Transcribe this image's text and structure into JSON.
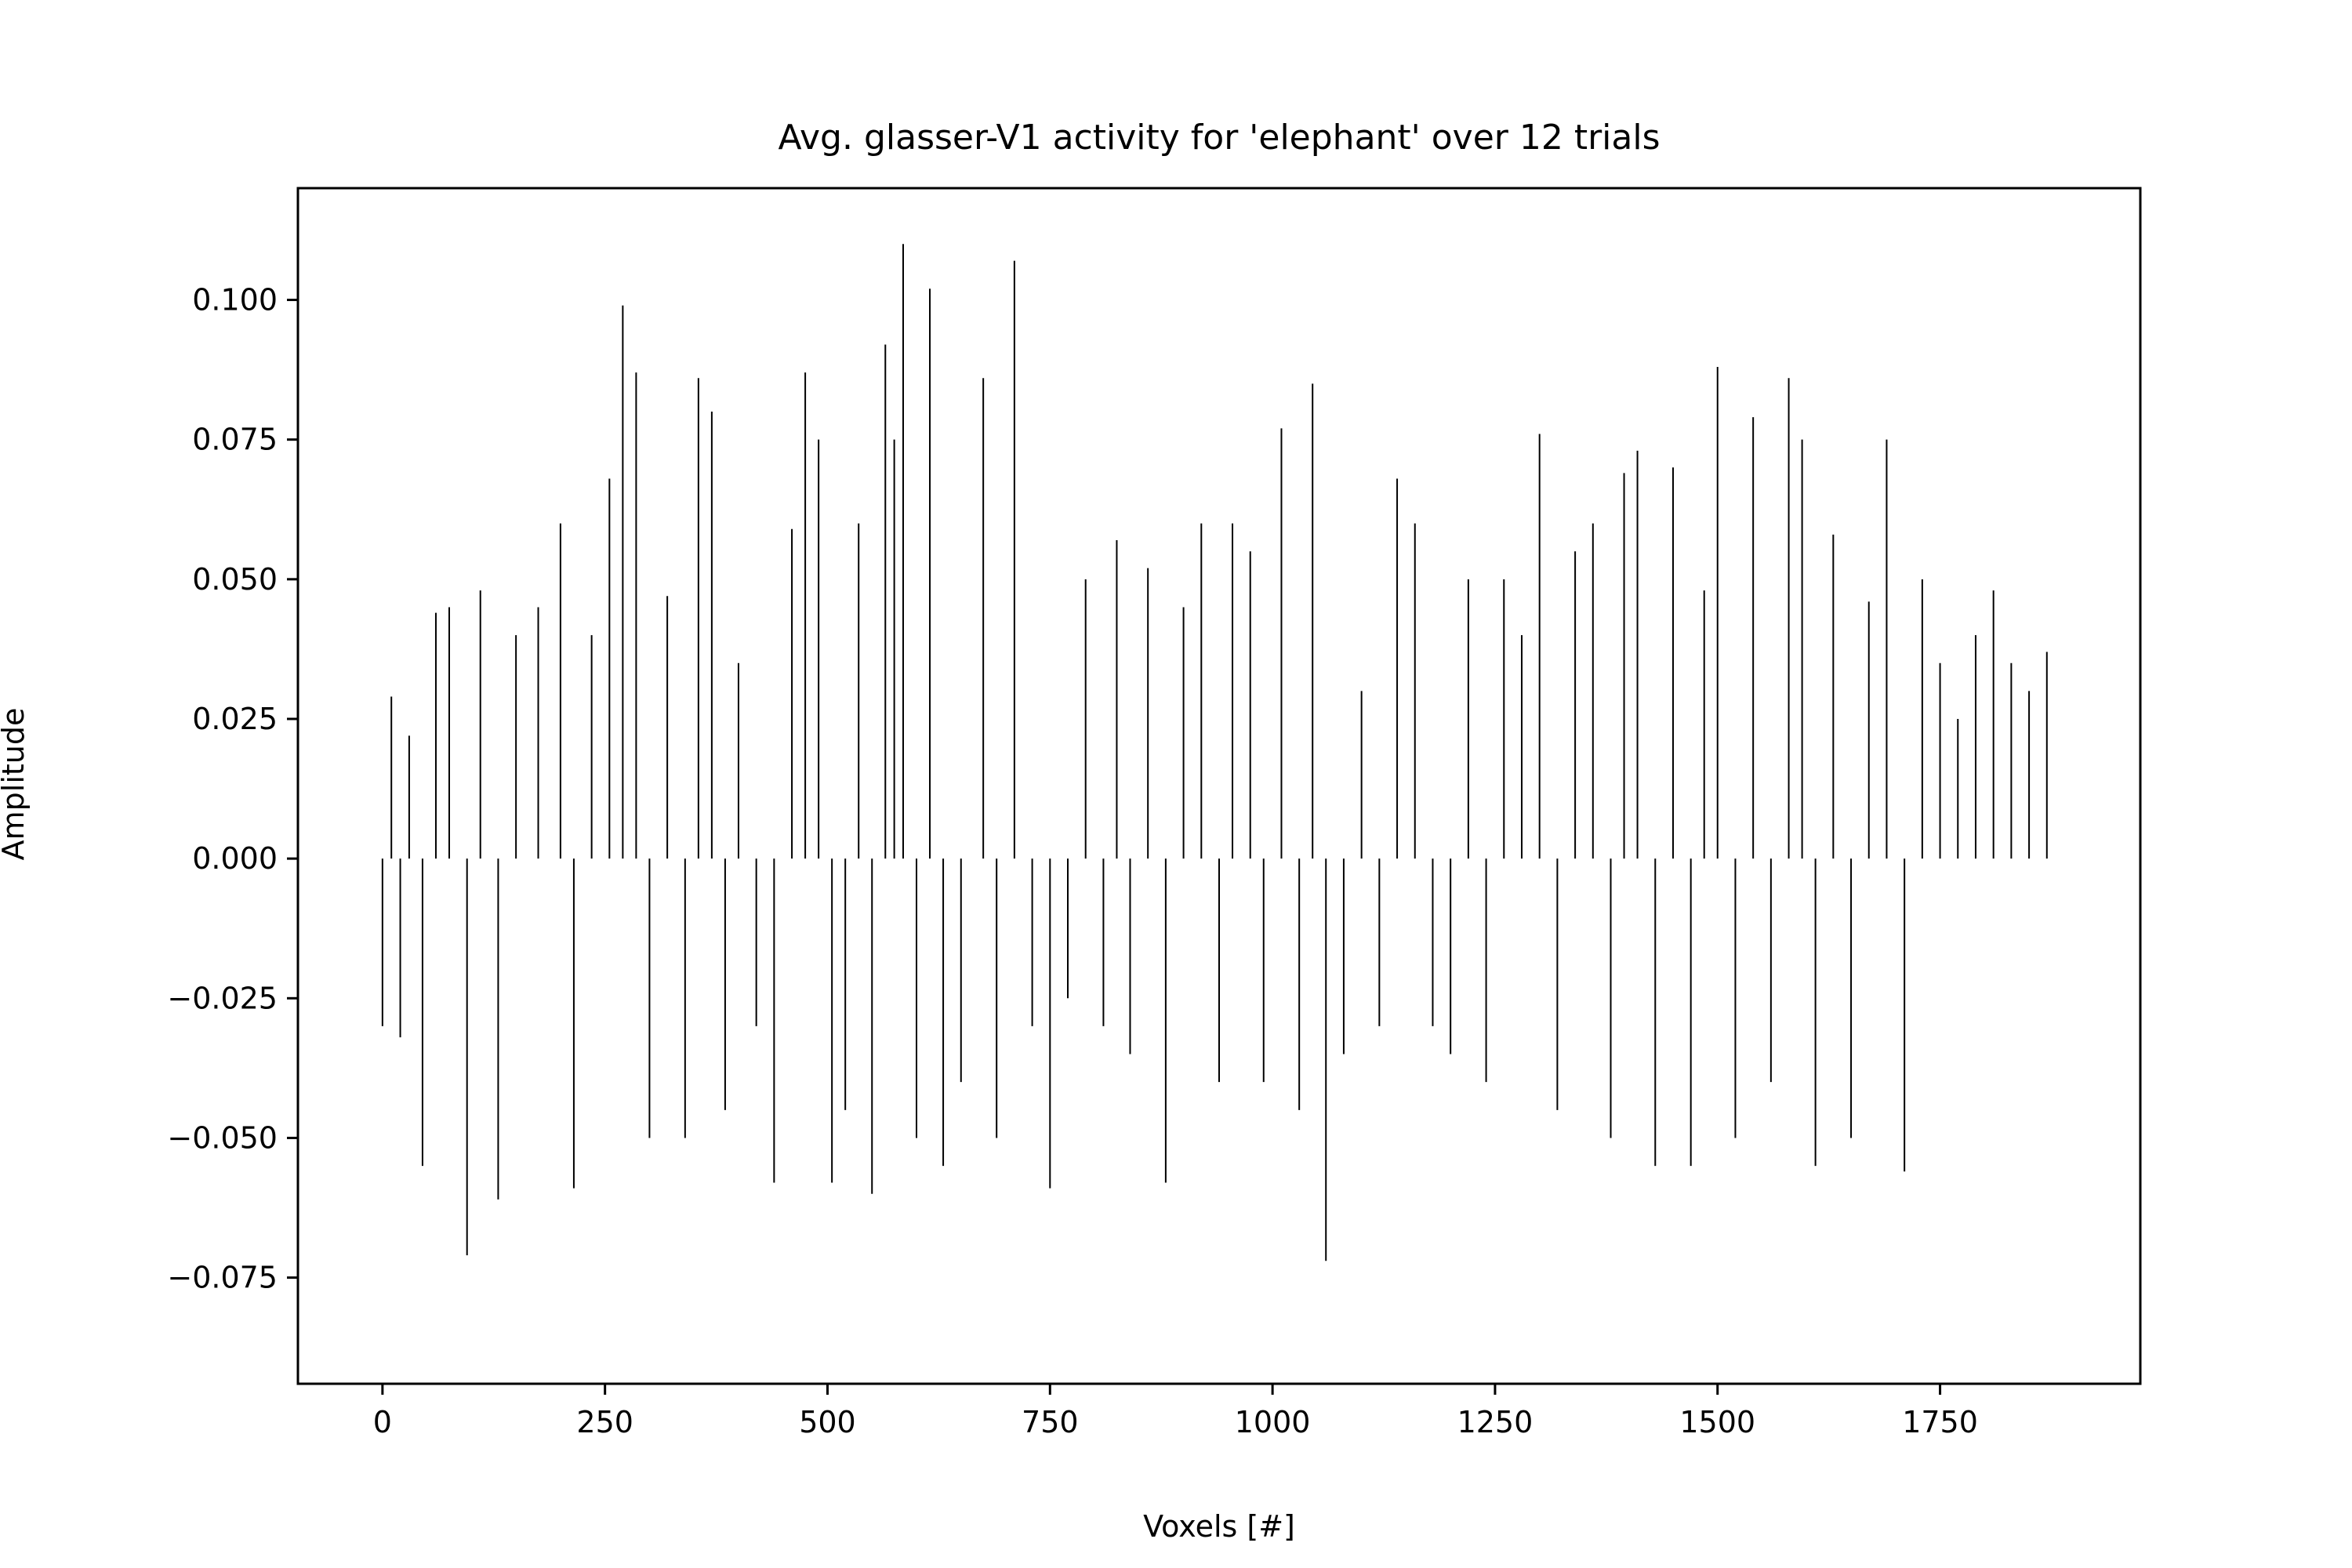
{
  "chart_data": {
    "type": "bar",
    "title": "Avg. glasser-V1 activity for 'elephant' over 12 trials",
    "xlabel": "Voxels [#]",
    "ylabel": "Amplitude",
    "xlim": [
      -95,
      1975
    ],
    "ylim": [
      -0.094,
      0.12
    ],
    "grid": false,
    "legend": "none",
    "bar_color": "#000000",
    "x_ticks": [
      {
        "value": 0,
        "label": "0"
      },
      {
        "value": 250,
        "label": "250"
      },
      {
        "value": 500,
        "label": "500"
      },
      {
        "value": 750,
        "label": "750"
      },
      {
        "value": 1000,
        "label": "1000"
      },
      {
        "value": 1250,
        "label": "1250"
      },
      {
        "value": 1500,
        "label": "1500"
      },
      {
        "value": 1750,
        "label": "1750"
      }
    ],
    "y_ticks": [
      {
        "value": 0.1,
        "label": "0.100"
      },
      {
        "value": 0.075,
        "label": "0.075"
      },
      {
        "value": 0.05,
        "label": "0.050"
      },
      {
        "value": 0.025,
        "label": "0.025"
      },
      {
        "value": 0.0,
        "label": "0.000"
      },
      {
        "value": -0.025,
        "label": "−0.025"
      },
      {
        "value": -0.05,
        "label": "−0.050"
      },
      {
        "value": -0.075,
        "label": "−0.075"
      }
    ],
    "x": [
      0,
      10,
      20,
      30,
      45,
      60,
      75,
      95,
      110,
      130,
      150,
      175,
      200,
      215,
      235,
      255,
      270,
      285,
      300,
      320,
      340,
      355,
      370,
      385,
      400,
      420,
      440,
      460,
      475,
      490,
      505,
      520,
      535,
      550,
      565,
      575,
      585,
      600,
      615,
      630,
      650,
      675,
      690,
      710,
      730,
      750,
      770,
      790,
      810,
      825,
      840,
      860,
      880,
      900,
      920,
      940,
      955,
      975,
      990,
      1010,
      1030,
      1045,
      1060,
      1080,
      1100,
      1120,
      1140,
      1160,
      1180,
      1200,
      1220,
      1240,
      1260,
      1280,
      1300,
      1320,
      1340,
      1360,
      1380,
      1395,
      1410,
      1430,
      1450,
      1470,
      1485,
      1500,
      1520,
      1540,
      1560,
      1580,
      1595,
      1610,
      1630,
      1650,
      1670,
      1690,
      1710,
      1730,
      1750,
      1770,
      1790,
      1810,
      1830,
      1850,
      1870
    ],
    "values": [
      -0.03,
      0.029,
      -0.032,
      0.022,
      -0.055,
      0.044,
      0.045,
      -0.071,
      0.048,
      -0.061,
      0.04,
      0.045,
      0.06,
      -0.059,
      0.04,
      0.068,
      0.099,
      0.087,
      -0.05,
      0.047,
      -0.05,
      0.086,
      0.08,
      -0.045,
      0.035,
      -0.03,
      -0.058,
      0.059,
      0.087,
      0.075,
      -0.058,
      -0.045,
      0.06,
      -0.06,
      0.092,
      0.075,
      0.11,
      -0.05,
      0.102,
      -0.055,
      -0.04,
      0.086,
      -0.05,
      0.107,
      -0.03,
      -0.059,
      -0.025,
      0.05,
      -0.03,
      0.057,
      -0.035,
      0.052,
      -0.058,
      0.045,
      0.06,
      -0.04,
      0.06,
      0.055,
      -0.04,
      0.077,
      -0.045,
      0.085,
      -0.072,
      -0.035,
      0.03,
      -0.03,
      0.068,
      0.06,
      -0.03,
      -0.035,
      0.05,
      -0.04,
      0.05,
      0.04,
      0.076,
      -0.045,
      0.055,
      0.06,
      -0.05,
      0.069,
      0.073,
      -0.055,
      0.07,
      -0.055,
      0.048,
      0.088,
      -0.05,
      0.079,
      -0.04,
      0.086,
      0.075,
      -0.055,
      0.058,
      -0.05,
      0.046,
      0.075,
      -0.056,
      0.05,
      0.035,
      0.025,
      0.04,
      0.048,
      0.035,
      0.03,
      0.037
    ]
  }
}
